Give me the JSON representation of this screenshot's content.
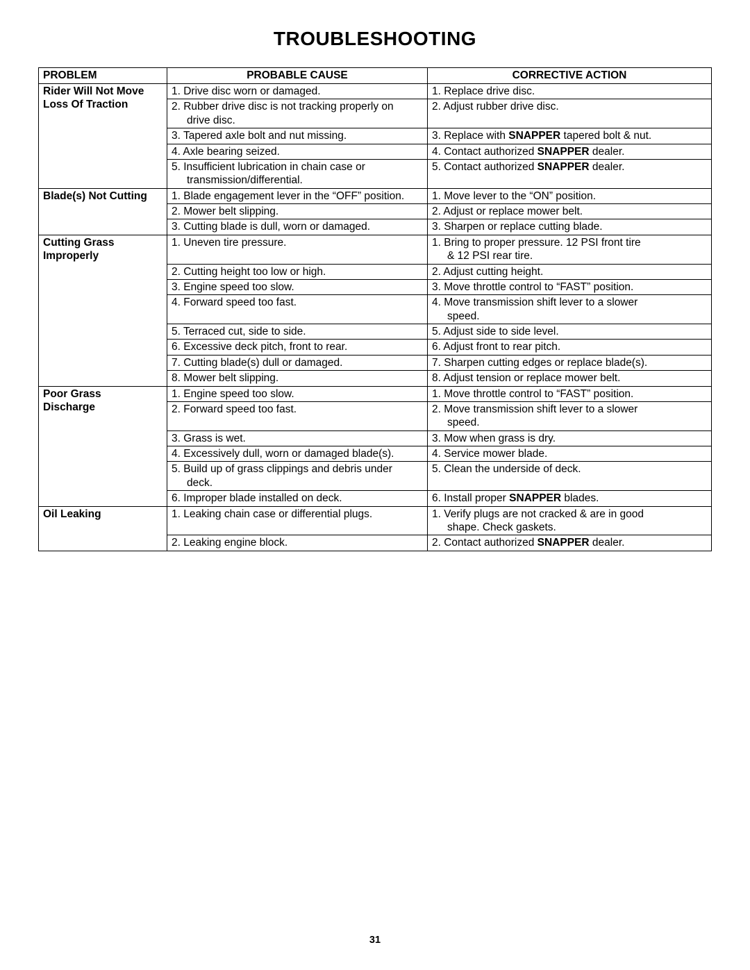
{
  "title": "TROUBLESHOOTING",
  "pageNumber": "31",
  "headers": {
    "problem": "PROBLEM",
    "cause": "PROBABLE CAUSE",
    "action": "CORRECTIVE ACTION"
  },
  "sections": [
    {
      "problem": "Rider Will Not Move Loss Of Traction",
      "problemLines": [
        "Rider Will Not Move",
        "Loss Of Traction"
      ],
      "rows": [
        {
          "cause": "1. Drive disc worn or damaged.",
          "action": "1. Replace drive disc."
        },
        {
          "cause": "2. Rubber drive disc is not tracking properly on",
          "causeCont": "drive disc.",
          "action": "2. Adjust rubber drive disc."
        },
        {
          "cause": "3. Tapered axle bolt and nut missing.",
          "actionPre": "3. Replace with ",
          "actionBold": "SNAPPER",
          "actionPost": " tapered bolt & nut."
        },
        {
          "cause": "4. Axle bearing seized.",
          "actionPre": "4. Contact authorized ",
          "actionBold": "SNAPPER",
          "actionPost": " dealer."
        },
        {
          "cause": "5. Insufficient lubrication in chain case or",
          "causeCont": "transmission/differential.",
          "actionPre": "5. Contact authorized ",
          "actionBold": "SNAPPER",
          "actionPost": " dealer."
        }
      ]
    },
    {
      "problem": "Blade(s) Not Cutting",
      "problemLines": [
        "Blade(s) Not Cutting"
      ],
      "rows": [
        {
          "cause": "1. Blade engagement lever in the “OFF” position.",
          "action": "1. Move lever to the “ON” position."
        },
        {
          "cause": "2. Mower belt slipping.",
          "action": "2. Adjust or replace mower belt."
        },
        {
          "cause": "3. Cutting blade is dull, worn or damaged.",
          "action": "3. Sharpen or replace cutting blade."
        }
      ]
    },
    {
      "problem": "Cutting Grass Improperly",
      "problemLines": [
        "Cutting Grass",
        "Improperly"
      ],
      "rows": [
        {
          "cause": "1. Uneven tire pressure.",
          "action": "1. Bring to proper pressure. 12 PSI front tire",
          "actionCont": "& 12 PSI rear tire."
        },
        {
          "cause": "2. Cutting height too low or high.",
          "action": "2. Adjust cutting height."
        },
        {
          "cause": "3. Engine speed too slow.",
          "action": "3. Move throttle control to “FAST” position."
        },
        {
          "cause": "4. Forward speed too fast.",
          "action": "4. Move transmission shift lever to a slower",
          "actionCont": "speed."
        },
        {
          "cause": "5. Terraced cut, side to side.",
          "action": "5. Adjust side to side level."
        },
        {
          "cause": "6. Excessive deck pitch, front to rear.",
          "action": "6. Adjust front to rear pitch."
        },
        {
          "cause": "7. Cutting blade(s) dull or damaged.",
          "action": "7. Sharpen cutting edges or replace blade(s)."
        },
        {
          "cause": "8. Mower belt slipping.",
          "action": "8. Adjust tension or replace mower belt."
        }
      ]
    },
    {
      "problem": "Poor Grass Discharge",
      "problemLines": [
        "Poor Grass",
        "Discharge"
      ],
      "rows": [
        {
          "cause": "1. Engine speed too slow.",
          "action": "1. Move throttle control to “FAST” position."
        },
        {
          "cause": "2. Forward speed too fast.",
          "action": "2. Move transmission shift lever to a slower",
          "actionCont": "speed."
        },
        {
          "cause": "3. Grass is wet.",
          "action": "3. Mow when grass is dry."
        },
        {
          "cause": "4. Excessively dull, worn or damaged blade(s).",
          "action": "4. Service mower blade."
        },
        {
          "cause": "5. Build up of grass clippings and debris under",
          "causeCont": "deck.",
          "action": "5. Clean the underside of deck."
        },
        {
          "cause": "6. Improper blade installed on deck.",
          "actionPre": "6. Install proper ",
          "actionBold": "SNAPPER",
          "actionPost": " blades."
        }
      ]
    },
    {
      "problem": "Oil Leaking",
      "problemLines": [
        "Oil Leaking"
      ],
      "rows": [
        {
          "cause": "1. Leaking chain case or differential plugs.",
          "action": "1. Verify plugs are not cracked & are in good",
          "actionCont": "shape. Check gaskets."
        },
        {
          "cause": "2. Leaking engine block.",
          "actionPre": "2. Contact authorized ",
          "actionBold": "SNAPPER",
          "actionPost": " dealer."
        }
      ]
    }
  ]
}
